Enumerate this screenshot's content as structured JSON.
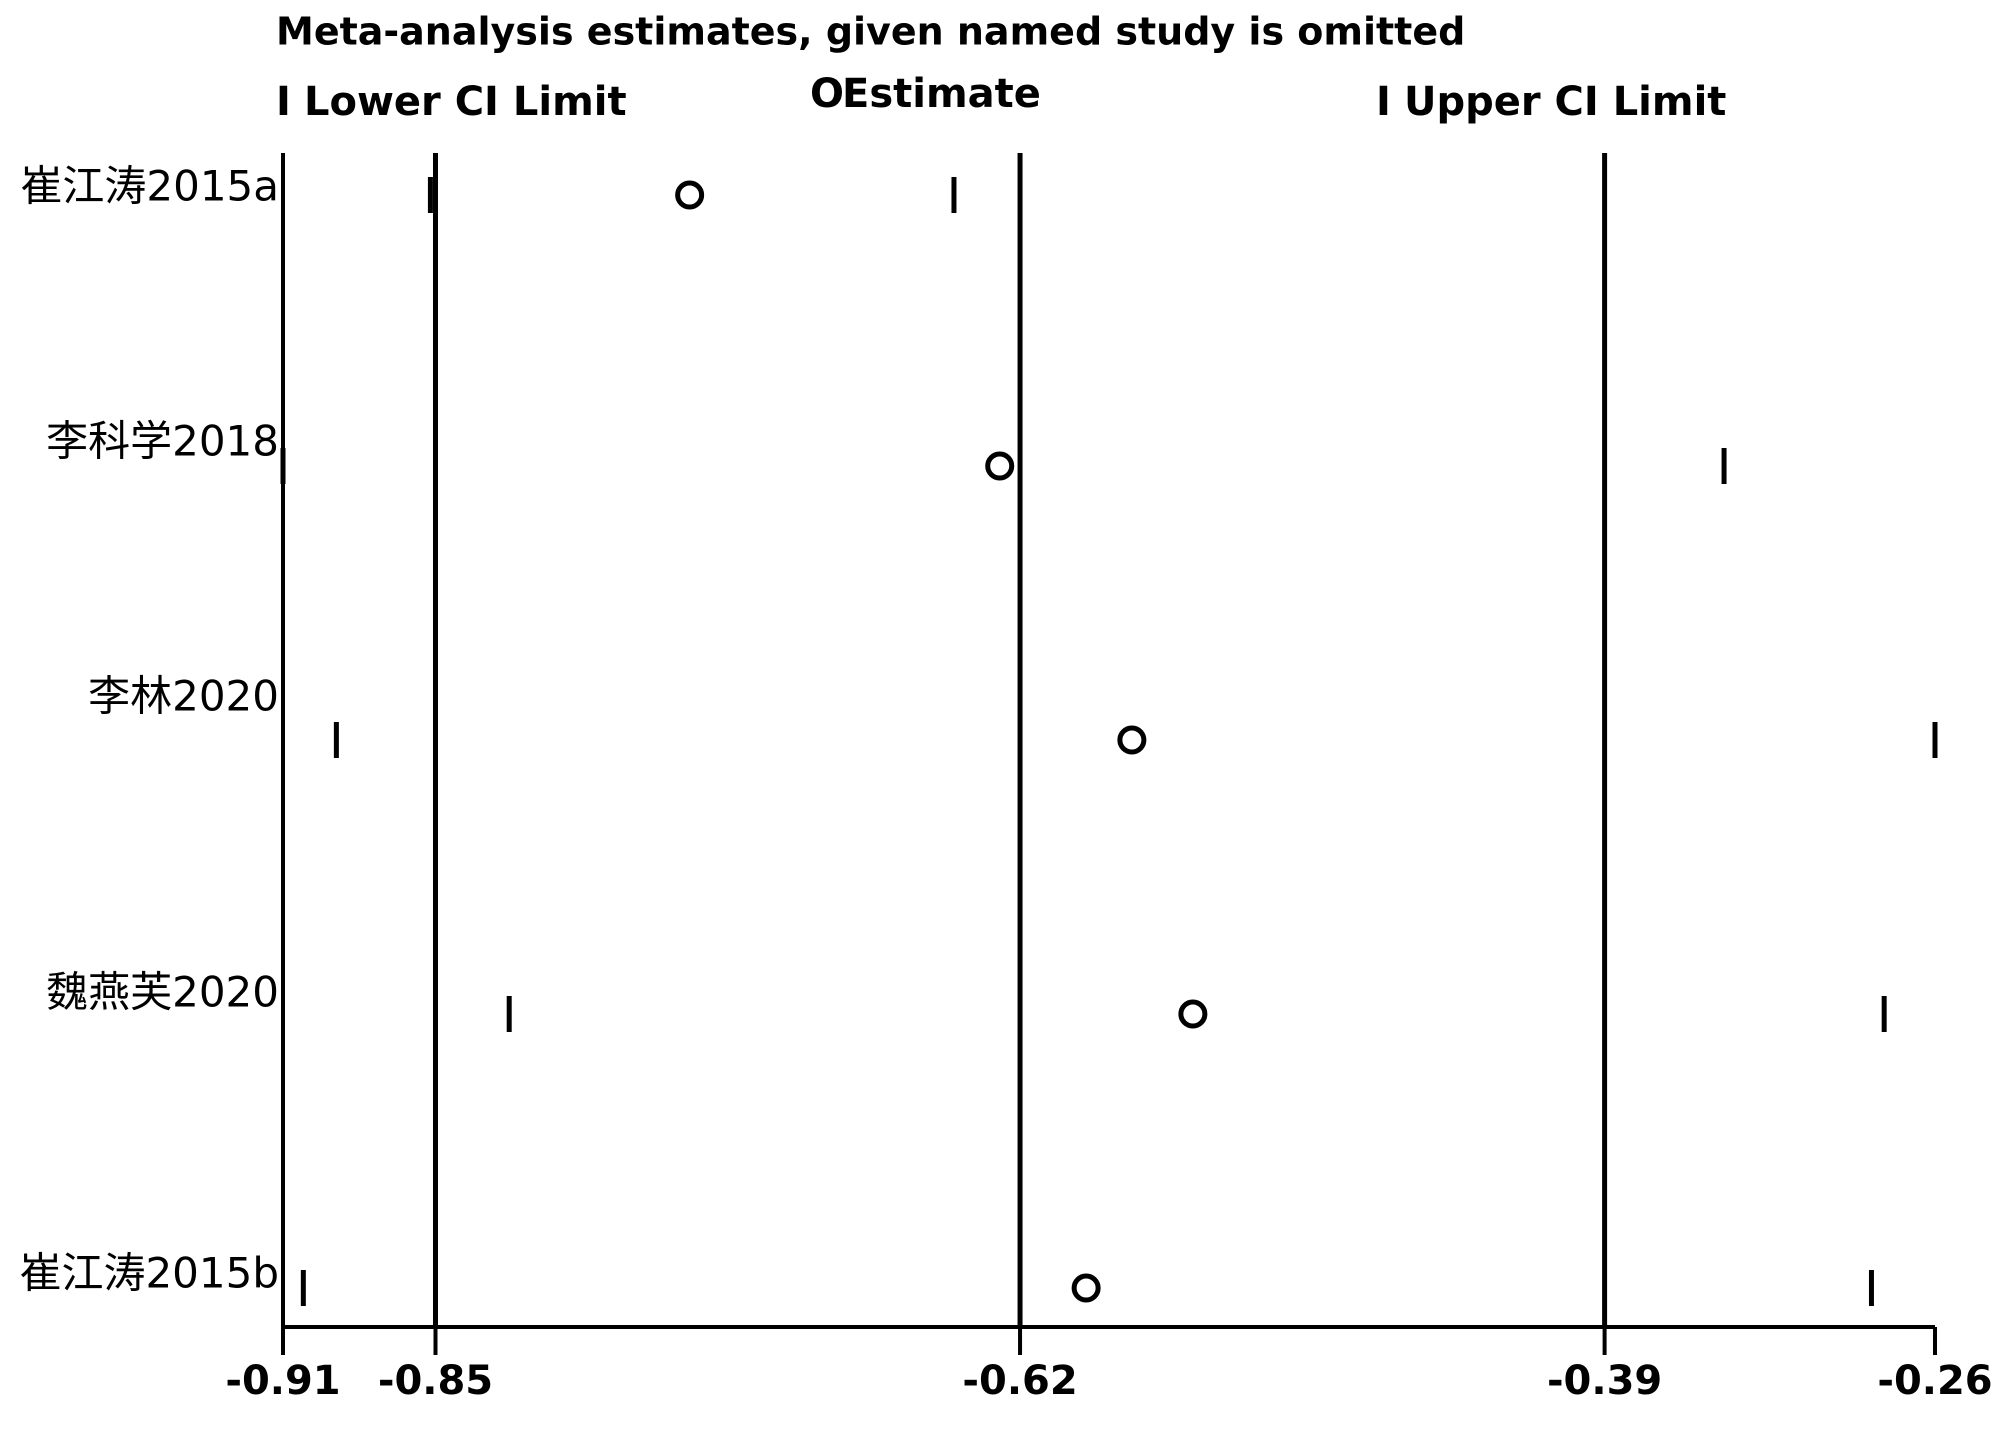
{
  "chart_data": {
    "type": "interval",
    "title": "Meta-analysis estimates, given named study is omitted",
    "categories": [
      "崔江涛2015a",
      "李科学2018",
      "李林2020",
      "魏燕芙2020",
      "崔江涛2015b"
    ],
    "series": [
      {
        "name": "Lower CI Limit",
        "marker": "I",
        "color": "#000000",
        "values": [
          -0.852,
          -0.91,
          -0.889,
          -0.821,
          -0.902
        ]
      },
      {
        "name": "Estimate",
        "marker": "O",
        "color": "#000000",
        "values": [
          -0.75,
          -0.628,
          -0.576,
          -0.552,
          -0.594
        ]
      },
      {
        "name": "Upper CI Limit",
        "marker": "I",
        "color": "#000000",
        "values": [
          -0.646,
          -0.343,
          -0.26,
          -0.28,
          -0.285
        ]
      }
    ],
    "reference_lines": [
      -0.85,
      -0.62,
      -0.39
    ],
    "xlim": [
      -0.91,
      -0.26
    ],
    "xticks": [
      -0.91,
      -0.85,
      -0.62,
      -0.39,
      -0.26
    ]
  }
}
